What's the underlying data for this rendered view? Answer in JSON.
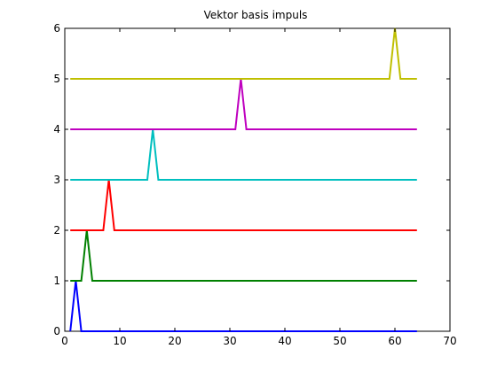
{
  "chart_data": {
    "type": "line",
    "title": "Vektor basis impuls",
    "xlabel": "",
    "ylabel": "",
    "xlim": [
      0,
      70
    ],
    "ylim": [
      0,
      6
    ],
    "xticks": [
      0,
      10,
      20,
      30,
      40,
      50,
      60,
      70
    ],
    "yticks": [
      0,
      1,
      2,
      3,
      4,
      5,
      6
    ],
    "grid": false,
    "legend": "none",
    "series": [
      {
        "color": "#0000ff",
        "x": [
          1,
          2,
          3,
          64
        ],
        "y": [
          0,
          1,
          0,
          0
        ]
      },
      {
        "color": "#008000",
        "x": [
          1,
          3,
          4,
          5,
          64
        ],
        "y": [
          1,
          1,
          2,
          1,
          1
        ]
      },
      {
        "color": "#ff0000",
        "x": [
          1,
          7,
          8,
          9,
          64
        ],
        "y": [
          2,
          2,
          3,
          2,
          2
        ]
      },
      {
        "color": "#00bfbf",
        "x": [
          1,
          15,
          16,
          17,
          64
        ],
        "y": [
          3,
          3,
          4,
          3,
          3
        ]
      },
      {
        "color": "#bf00bf",
        "x": [
          1,
          31,
          32,
          33,
          64
        ],
        "y": [
          4,
          4,
          5,
          4,
          4
        ]
      },
      {
        "color": "#bfbf00",
        "x": [
          1,
          59,
          60,
          61,
          64
        ],
        "y": [
          5,
          5,
          6,
          5,
          5
        ]
      }
    ]
  }
}
